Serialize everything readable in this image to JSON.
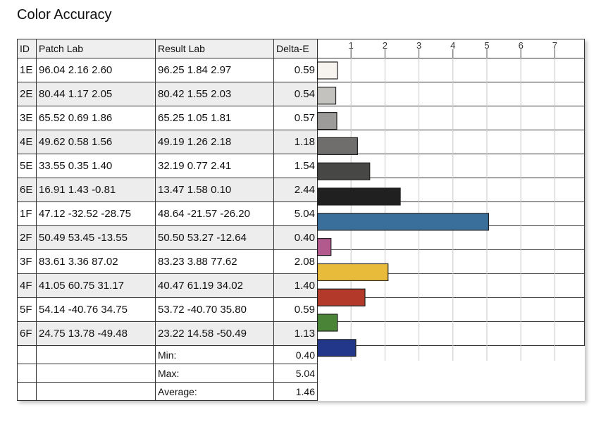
{
  "title": "Color Accuracy",
  "headers": {
    "id": "ID",
    "patch": "Patch Lab",
    "result": "Result Lab",
    "delta": "Delta-E"
  },
  "rows": [
    {
      "id": "1E",
      "patch": "96.04  2.16  2.60",
      "result": "96.25  1.84  2.97",
      "delta": "0.59",
      "color": "#f7f3ee"
    },
    {
      "id": "2E",
      "patch": "80.44  1.17  2.05",
      "result": "80.42  1.55  2.03",
      "delta": "0.54",
      "color": "#c4c2bf"
    },
    {
      "id": "3E",
      "patch": "65.52  0.69  1.86",
      "result": "65.25  1.05  1.81",
      "delta": "0.57",
      "color": "#9c9b99"
    },
    {
      "id": "4E",
      "patch": "49.62  0.58  1.56",
      "result": "49.19  1.26  2.18",
      "delta": "1.18",
      "color": "#6f6e6c"
    },
    {
      "id": "5E",
      "patch": "33.55  0.35  1.40",
      "result": "32.19  0.77  2.41",
      "delta": "1.54",
      "color": "#474745"
    },
    {
      "id": "6E",
      "patch": "16.91  1.43  -0.81",
      "result": "13.47  1.58  0.10",
      "delta": "2.44",
      "color": "#202020"
    },
    {
      "id": "1F",
      "patch": "47.12 -32.52 -28.75",
      "result": "48.64 -21.57 -26.20",
      "delta": "5.04",
      "color": "#3a6f9c"
    },
    {
      "id": "2F",
      "patch": "50.49  53.45 -13.55",
      "result": "50.50  53.27 -12.64",
      "delta": "0.40",
      "color": "#b25a8e"
    },
    {
      "id": "3F",
      "patch": "83.61  3.36  87.02",
      "result": "83.23  3.88  77.62",
      "delta": "2.08",
      "color": "#e8bb3a"
    },
    {
      "id": "4F",
      "patch": "41.05  60.75  31.17",
      "result": "40.47  61.19  34.02",
      "delta": "1.40",
      "color": "#b33a2a"
    },
    {
      "id": "5F",
      "patch": "54.14 -40.76  34.75",
      "result": "53.72 -40.70  35.80",
      "delta": "0.59",
      "color": "#4a8436"
    },
    {
      "id": "6F",
      "patch": "24.75  13.78 -49.48",
      "result": "23.22  14.58 -50.49",
      "delta": "1.13",
      "color": "#23378a"
    }
  ],
  "summary": [
    {
      "label": "Min:",
      "value": "0.40"
    },
    {
      "label": "Max:",
      "value": "5.04"
    },
    {
      "label": "Average:",
      "value": "1.46"
    }
  ],
  "chart_data": {
    "type": "bar",
    "orientation": "horizontal",
    "title": "Color Accuracy",
    "categories": [
      "1E",
      "2E",
      "3E",
      "4E",
      "5E",
      "6E",
      "1F",
      "2F",
      "3F",
      "4F",
      "5F",
      "6F"
    ],
    "values": [
      0.59,
      0.54,
      0.57,
      1.18,
      1.54,
      2.44,
      5.04,
      0.4,
      2.08,
      1.4,
      0.59,
      1.13
    ],
    "xticks": [
      "1",
      "2",
      "3",
      "4",
      "5",
      "6",
      "7"
    ],
    "xlim": [
      0,
      7.9
    ],
    "xlabel": "",
    "ylabel": "Delta-E",
    "grid": true
  }
}
